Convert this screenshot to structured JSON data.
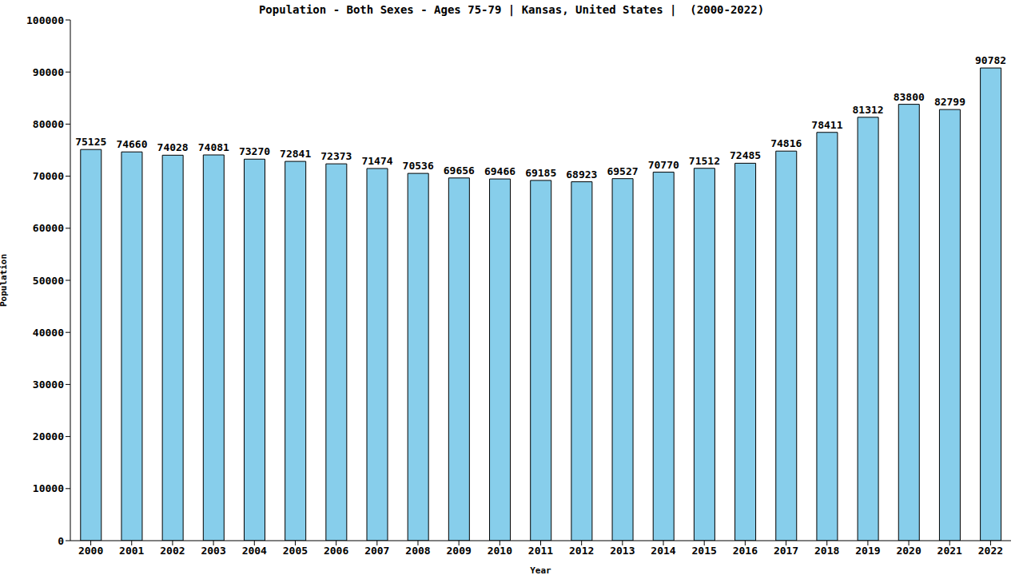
{
  "chart_data": {
    "type": "bar",
    "title": "Population - Both Sexes - Ages 75-79 | Kansas, United States |  (2000-2022)",
    "x_label": "Year",
    "y_label": "Population",
    "categories": [
      "2000",
      "2001",
      "2002",
      "2003",
      "2004",
      "2005",
      "2006",
      "2007",
      "2008",
      "2009",
      "2010",
      "2011",
      "2012",
      "2013",
      "2014",
      "2015",
      "2016",
      "2017",
      "2018",
      "2019",
      "2020",
      "2021",
      "2022"
    ],
    "values": [
      75125,
      74660,
      74028,
      74081,
      73270,
      72841,
      72373,
      71474,
      70536,
      69656,
      69466,
      69185,
      68923,
      69527,
      70770,
      71512,
      72485,
      74816,
      78411,
      81312,
      83800,
      82799,
      90782
    ],
    "color": "#87ceeb",
    "ylim": [
      0,
      100000
    ],
    "yticks": [
      0,
      10000,
      20000,
      30000,
      40000,
      50000,
      60000,
      70000,
      80000,
      90000,
      100000
    ],
    "grid": false,
    "data_labels": true
  }
}
